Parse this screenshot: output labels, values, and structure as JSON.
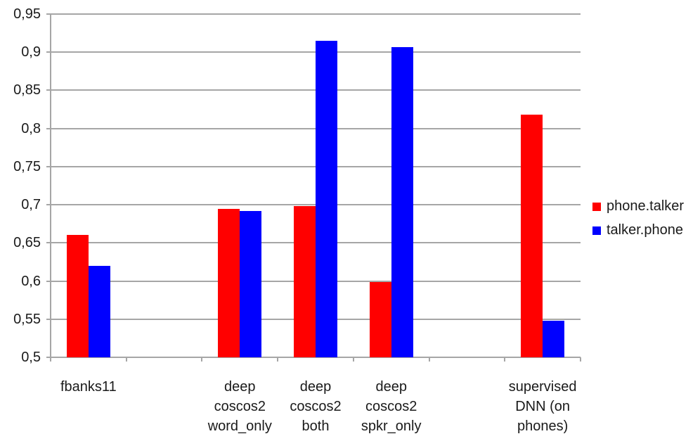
{
  "chart_data": {
    "type": "bar",
    "title": "",
    "xlabel": "",
    "ylabel": "",
    "categories": [
      "fbanks11",
      "deep coscos2 word_only",
      "deep coscos2 both",
      "deep coscos2 spkr_only",
      "supervised DNN (on phones)"
    ],
    "category_label_lines": [
      [
        "fbanks11"
      ],
      [
        "deep",
        "coscos2",
        "word_only"
      ],
      [
        "deep",
        "coscos2",
        "both"
      ],
      [
        "deep",
        "coscos2",
        "spkr_only"
      ],
      [
        "supervised",
        "DNN (on",
        "phones)"
      ]
    ],
    "series": [
      {
        "name": "phone.talker",
        "color": "#ff0000",
        "values": [
          0.66,
          0.695,
          0.698,
          0.599,
          0.818
        ]
      },
      {
        "name": "talker.phone",
        "color": "#0000ff",
        "values": [
          0.62,
          0.692,
          0.915,
          0.907,
          0.548
        ]
      }
    ],
    "ylim": [
      0.5,
      0.95
    ],
    "ytick_step": 0.05,
    "ytick_labels": [
      "0,5",
      "0,55",
      "0,6",
      "0,65",
      "0,7",
      "0,75",
      "0,8",
      "0,85",
      "0,9",
      "0,95"
    ],
    "grid": true,
    "legend_position": "right",
    "num_slots": 7,
    "slot_indices": [
      0,
      2,
      3,
      4,
      6
    ]
  },
  "colors": {
    "gridline": "#a6a6a6",
    "axis": "#a6a6a6",
    "background": "#ffffff",
    "text": "#1a1a1a"
  }
}
